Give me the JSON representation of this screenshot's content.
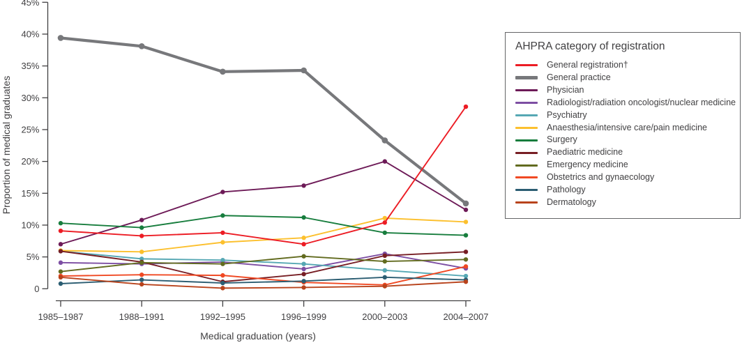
{
  "legend": {
    "title": "AHPRA category of registration"
  },
  "chart_data": {
    "type": "line",
    "title": "",
    "xlabel": "Medical graduation (years)",
    "ylabel": "Proportion of medical graduates",
    "ylim": [
      0,
      45
    ],
    "ytick_step": 5,
    "ytick_suffix": "%",
    "ytick_zero_label": "0",
    "grid": false,
    "legend_position": "right",
    "categories": [
      "1985–1987",
      "1988–1991",
      "1992–1995",
      "1996–1999",
      "2000–2003",
      "2004–2007"
    ],
    "series": [
      {
        "name": "General registration†",
        "color": "#ec1c24",
        "thick": false,
        "values": [
          9.1,
          8.3,
          8.8,
          7.0,
          10.4,
          28.6
        ]
      },
      {
        "name": "General practice",
        "color": "#77787b",
        "thick": true,
        "values": [
          39.4,
          38.1,
          34.1,
          34.3,
          23.3,
          13.4
        ]
      },
      {
        "name": "Physician",
        "color": "#6d1a57",
        "thick": false,
        "values": [
          7.0,
          10.8,
          15.2,
          16.2,
          20.0,
          12.4
        ]
      },
      {
        "name": "Radiologist/radiation oncologist/nuclear medicine",
        "color": "#7d4ea3",
        "thick": false,
        "values": [
          4.1,
          3.9,
          4.2,
          3.1,
          5.5,
          3.2
        ]
      },
      {
        "name": "Psychiatry",
        "color": "#56a8b4",
        "thick": false,
        "values": [
          5.9,
          4.7,
          4.5,
          3.9,
          2.9,
          2.0
        ]
      },
      {
        "name": "Anaesthesia/intensive care/pain medicine",
        "color": "#fcc02e",
        "thick": false,
        "values": [
          6.0,
          5.8,
          7.3,
          8.0,
          11.1,
          10.5
        ]
      },
      {
        "name": "Surgery",
        "color": "#177d3d",
        "thick": false,
        "values": [
          10.3,
          9.6,
          11.5,
          11.2,
          8.8,
          8.4
        ]
      },
      {
        "name": "Paediatric medicine",
        "color": "#771e24",
        "thick": false,
        "values": [
          5.9,
          4.2,
          1.1,
          2.3,
          5.2,
          5.8
        ]
      },
      {
        "name": "Emergency medicine",
        "color": "#626b1f",
        "thick": false,
        "values": [
          2.7,
          4.1,
          3.9,
          5.1,
          4.3,
          4.6
        ]
      },
      {
        "name": "Obstetrics and gynaecology",
        "color": "#f04923",
        "thick": false,
        "values": [
          2.0,
          2.2,
          2.1,
          1.0,
          0.6,
          3.5
        ]
      },
      {
        "name": "Pathology",
        "color": "#2b5d72",
        "thick": false,
        "values": [
          0.8,
          1.4,
          0.9,
          1.2,
          1.8,
          1.4
        ]
      },
      {
        "name": "Dermatology",
        "color": "#b8431c",
        "thick": false,
        "values": [
          1.8,
          0.7,
          0.1,
          0.2,
          0.4,
          1.1
        ]
      }
    ]
  }
}
